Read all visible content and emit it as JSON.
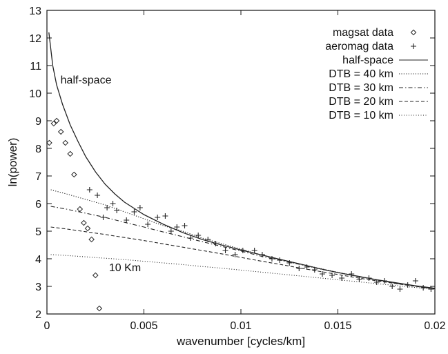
{
  "chart_data": {
    "type": "scatter",
    "title": "",
    "xlabel": "wavenumber [cycles/km]",
    "ylabel": "ln(power)",
    "xlim": [
      0,
      0.02
    ],
    "ylim": [
      2,
      13
    ],
    "x_ticks": [
      0,
      0.005,
      0.01,
      0.015,
      0.02
    ],
    "x_tick_labels": [
      "0",
      "0.005",
      "0.01",
      "0.015",
      "0.02"
    ],
    "y_ticks": [
      2,
      3,
      4,
      5,
      6,
      7,
      8,
      9,
      10,
      11,
      12,
      13
    ],
    "y_tick_labels": [
      "2",
      "3",
      "4",
      "5",
      "6",
      "7",
      "8",
      "9",
      "10",
      "11",
      "12",
      "13"
    ],
    "grid": false,
    "legend_position": "top-right",
    "series": [
      {
        "name": "magsat data",
        "kind": "points",
        "marker": "diamond",
        "points": [
          [
            0.00012,
            8.2
          ],
          [
            0.00035,
            8.9
          ],
          [
            0.0005,
            9.0
          ],
          [
            0.00072,
            8.6
          ],
          [
            0.00095,
            8.2
          ],
          [
            0.0012,
            7.8
          ],
          [
            0.0014,
            7.05
          ],
          [
            0.0017,
            5.8
          ],
          [
            0.0019,
            5.3
          ],
          [
            0.0021,
            5.1
          ],
          [
            0.0023,
            4.7
          ],
          [
            0.0025,
            3.4
          ],
          [
            0.0027,
            2.2
          ]
        ]
      },
      {
        "name": "aeromag data",
        "kind": "points",
        "marker": "plus",
        "points": [
          [
            0.0022,
            6.5
          ],
          [
            0.0026,
            6.3
          ],
          [
            0.0029,
            5.5
          ],
          [
            0.0031,
            5.85
          ],
          [
            0.0034,
            6.0
          ],
          [
            0.0036,
            5.75
          ],
          [
            0.0041,
            5.4
          ],
          [
            0.0045,
            5.7
          ],
          [
            0.0048,
            5.85
          ],
          [
            0.0052,
            5.25
          ],
          [
            0.0057,
            5.5
          ],
          [
            0.0061,
            5.55
          ],
          [
            0.0064,
            5.0
          ],
          [
            0.0067,
            5.15
          ],
          [
            0.0071,
            5.2
          ],
          [
            0.0074,
            4.75
          ],
          [
            0.0078,
            4.85
          ],
          [
            0.0083,
            4.7
          ],
          [
            0.0087,
            4.55
          ],
          [
            0.0092,
            4.3
          ],
          [
            0.0097,
            4.15
          ],
          [
            0.0101,
            4.3
          ],
          [
            0.0107,
            4.3
          ],
          [
            0.0111,
            4.15
          ],
          [
            0.0116,
            4.0
          ],
          [
            0.012,
            3.95
          ],
          [
            0.0125,
            3.85
          ],
          [
            0.013,
            3.65
          ],
          [
            0.0134,
            3.7
          ],
          [
            0.0138,
            3.6
          ],
          [
            0.0142,
            3.45
          ],
          [
            0.0147,
            3.4
          ],
          [
            0.0152,
            3.3
          ],
          [
            0.0157,
            3.45
          ],
          [
            0.0161,
            3.25
          ],
          [
            0.0166,
            3.3
          ],
          [
            0.017,
            3.15
          ],
          [
            0.0174,
            3.2
          ],
          [
            0.0178,
            3.0
          ],
          [
            0.0182,
            2.9
          ],
          [
            0.0186,
            3.05
          ],
          [
            0.019,
            3.2
          ],
          [
            0.0194,
            2.95
          ],
          [
            0.0198,
            2.9
          ]
        ]
      },
      {
        "name": "half-space",
        "kind": "line",
        "dash": "solid",
        "points": [
          [
            0.0001,
            12.2
          ],
          [
            0.0003,
            11.0
          ],
          [
            0.0005,
            10.3
          ],
          [
            0.0008,
            9.6
          ],
          [
            0.0012,
            8.85
          ],
          [
            0.0016,
            8.25
          ],
          [
            0.002,
            7.7
          ],
          [
            0.0025,
            7.15
          ],
          [
            0.003,
            6.7
          ],
          [
            0.0035,
            6.35
          ],
          [
            0.004,
            6.05
          ],
          [
            0.005,
            5.6
          ],
          [
            0.006,
            5.25
          ],
          [
            0.007,
            4.95
          ],
          [
            0.008,
            4.7
          ],
          [
            0.009,
            4.5
          ],
          [
            0.01,
            4.32
          ],
          [
            0.011,
            4.15
          ],
          [
            0.012,
            3.98
          ],
          [
            0.013,
            3.82
          ],
          [
            0.014,
            3.65
          ],
          [
            0.015,
            3.5
          ],
          [
            0.016,
            3.37
          ],
          [
            0.017,
            3.24
          ],
          [
            0.018,
            3.13
          ],
          [
            0.019,
            3.02
          ],
          [
            0.02,
            2.93
          ]
        ]
      },
      {
        "name": "DTB = 40 km",
        "kind": "line",
        "dash": "dotted",
        "points": [
          [
            0.0002,
            6.5
          ],
          [
            0.001,
            6.35
          ],
          [
            0.002,
            6.15
          ],
          [
            0.003,
            5.95
          ],
          [
            0.004,
            5.7
          ],
          [
            0.005,
            5.45
          ],
          [
            0.006,
            5.2
          ],
          [
            0.007,
            5.0
          ],
          [
            0.008,
            4.75
          ],
          [
            0.009,
            4.55
          ],
          [
            0.01,
            4.35
          ],
          [
            0.011,
            4.15
          ],
          [
            0.012,
            3.98
          ],
          [
            0.013,
            3.82
          ],
          [
            0.014,
            3.66
          ],
          [
            0.015,
            3.51
          ],
          [
            0.016,
            3.37
          ],
          [
            0.017,
            3.24
          ],
          [
            0.018,
            3.12
          ],
          [
            0.019,
            3.02
          ],
          [
            0.02,
            2.93
          ]
        ]
      },
      {
        "name": "DTB = 30 km",
        "kind": "line",
        "dash": "dashdot",
        "points": [
          [
            0.0002,
            5.9
          ],
          [
            0.001,
            5.8
          ],
          [
            0.002,
            5.65
          ],
          [
            0.003,
            5.5
          ],
          [
            0.004,
            5.32
          ],
          [
            0.005,
            5.15
          ],
          [
            0.006,
            4.97
          ],
          [
            0.007,
            4.8
          ],
          [
            0.008,
            4.62
          ],
          [
            0.009,
            4.45
          ],
          [
            0.01,
            4.28
          ],
          [
            0.011,
            4.1
          ],
          [
            0.012,
            3.95
          ],
          [
            0.013,
            3.8
          ],
          [
            0.014,
            3.64
          ],
          [
            0.015,
            3.5
          ],
          [
            0.016,
            3.36
          ],
          [
            0.017,
            3.23
          ],
          [
            0.018,
            3.11
          ],
          [
            0.019,
            3.01
          ],
          [
            0.02,
            2.92
          ]
        ]
      },
      {
        "name": "DTB = 20 km",
        "kind": "line",
        "dash": "dashed",
        "points": [
          [
            0.0002,
            5.15
          ],
          [
            0.001,
            5.08
          ],
          [
            0.002,
            4.98
          ],
          [
            0.003,
            4.88
          ],
          [
            0.004,
            4.77
          ],
          [
            0.005,
            4.66
          ],
          [
            0.006,
            4.54
          ],
          [
            0.007,
            4.42
          ],
          [
            0.008,
            4.3
          ],
          [
            0.009,
            4.18
          ],
          [
            0.01,
            4.05
          ],
          [
            0.011,
            3.92
          ],
          [
            0.012,
            3.8
          ],
          [
            0.013,
            3.67
          ],
          [
            0.014,
            3.55
          ],
          [
            0.015,
            3.43
          ],
          [
            0.016,
            3.31
          ],
          [
            0.017,
            3.2
          ],
          [
            0.018,
            3.1
          ],
          [
            0.019,
            3.0
          ],
          [
            0.02,
            2.91
          ]
        ]
      },
      {
        "name": "DTB = 10 km",
        "kind": "line",
        "dash": "finedot",
        "points": [
          [
            0.0002,
            4.15
          ],
          [
            0.001,
            4.12
          ],
          [
            0.002,
            4.07
          ],
          [
            0.003,
            4.02
          ],
          [
            0.004,
            3.97
          ],
          [
            0.005,
            3.91
          ],
          [
            0.006,
            3.85
          ],
          [
            0.007,
            3.79
          ],
          [
            0.008,
            3.72
          ],
          [
            0.009,
            3.66
          ],
          [
            0.01,
            3.59
          ],
          [
            0.011,
            3.52
          ],
          [
            0.012,
            3.45
          ],
          [
            0.013,
            3.38
          ],
          [
            0.014,
            3.31
          ],
          [
            0.015,
            3.24
          ],
          [
            0.016,
            3.17
          ],
          [
            0.017,
            3.1
          ],
          [
            0.018,
            3.03
          ],
          [
            0.019,
            2.96
          ],
          [
            0.02,
            2.9
          ]
        ]
      }
    ],
    "annotations": [
      {
        "text": "half-space",
        "x": 0.0007,
        "y": 10.35
      },
      {
        "text": "10 Km",
        "x": 0.0032,
        "y": 3.55
      }
    ]
  }
}
